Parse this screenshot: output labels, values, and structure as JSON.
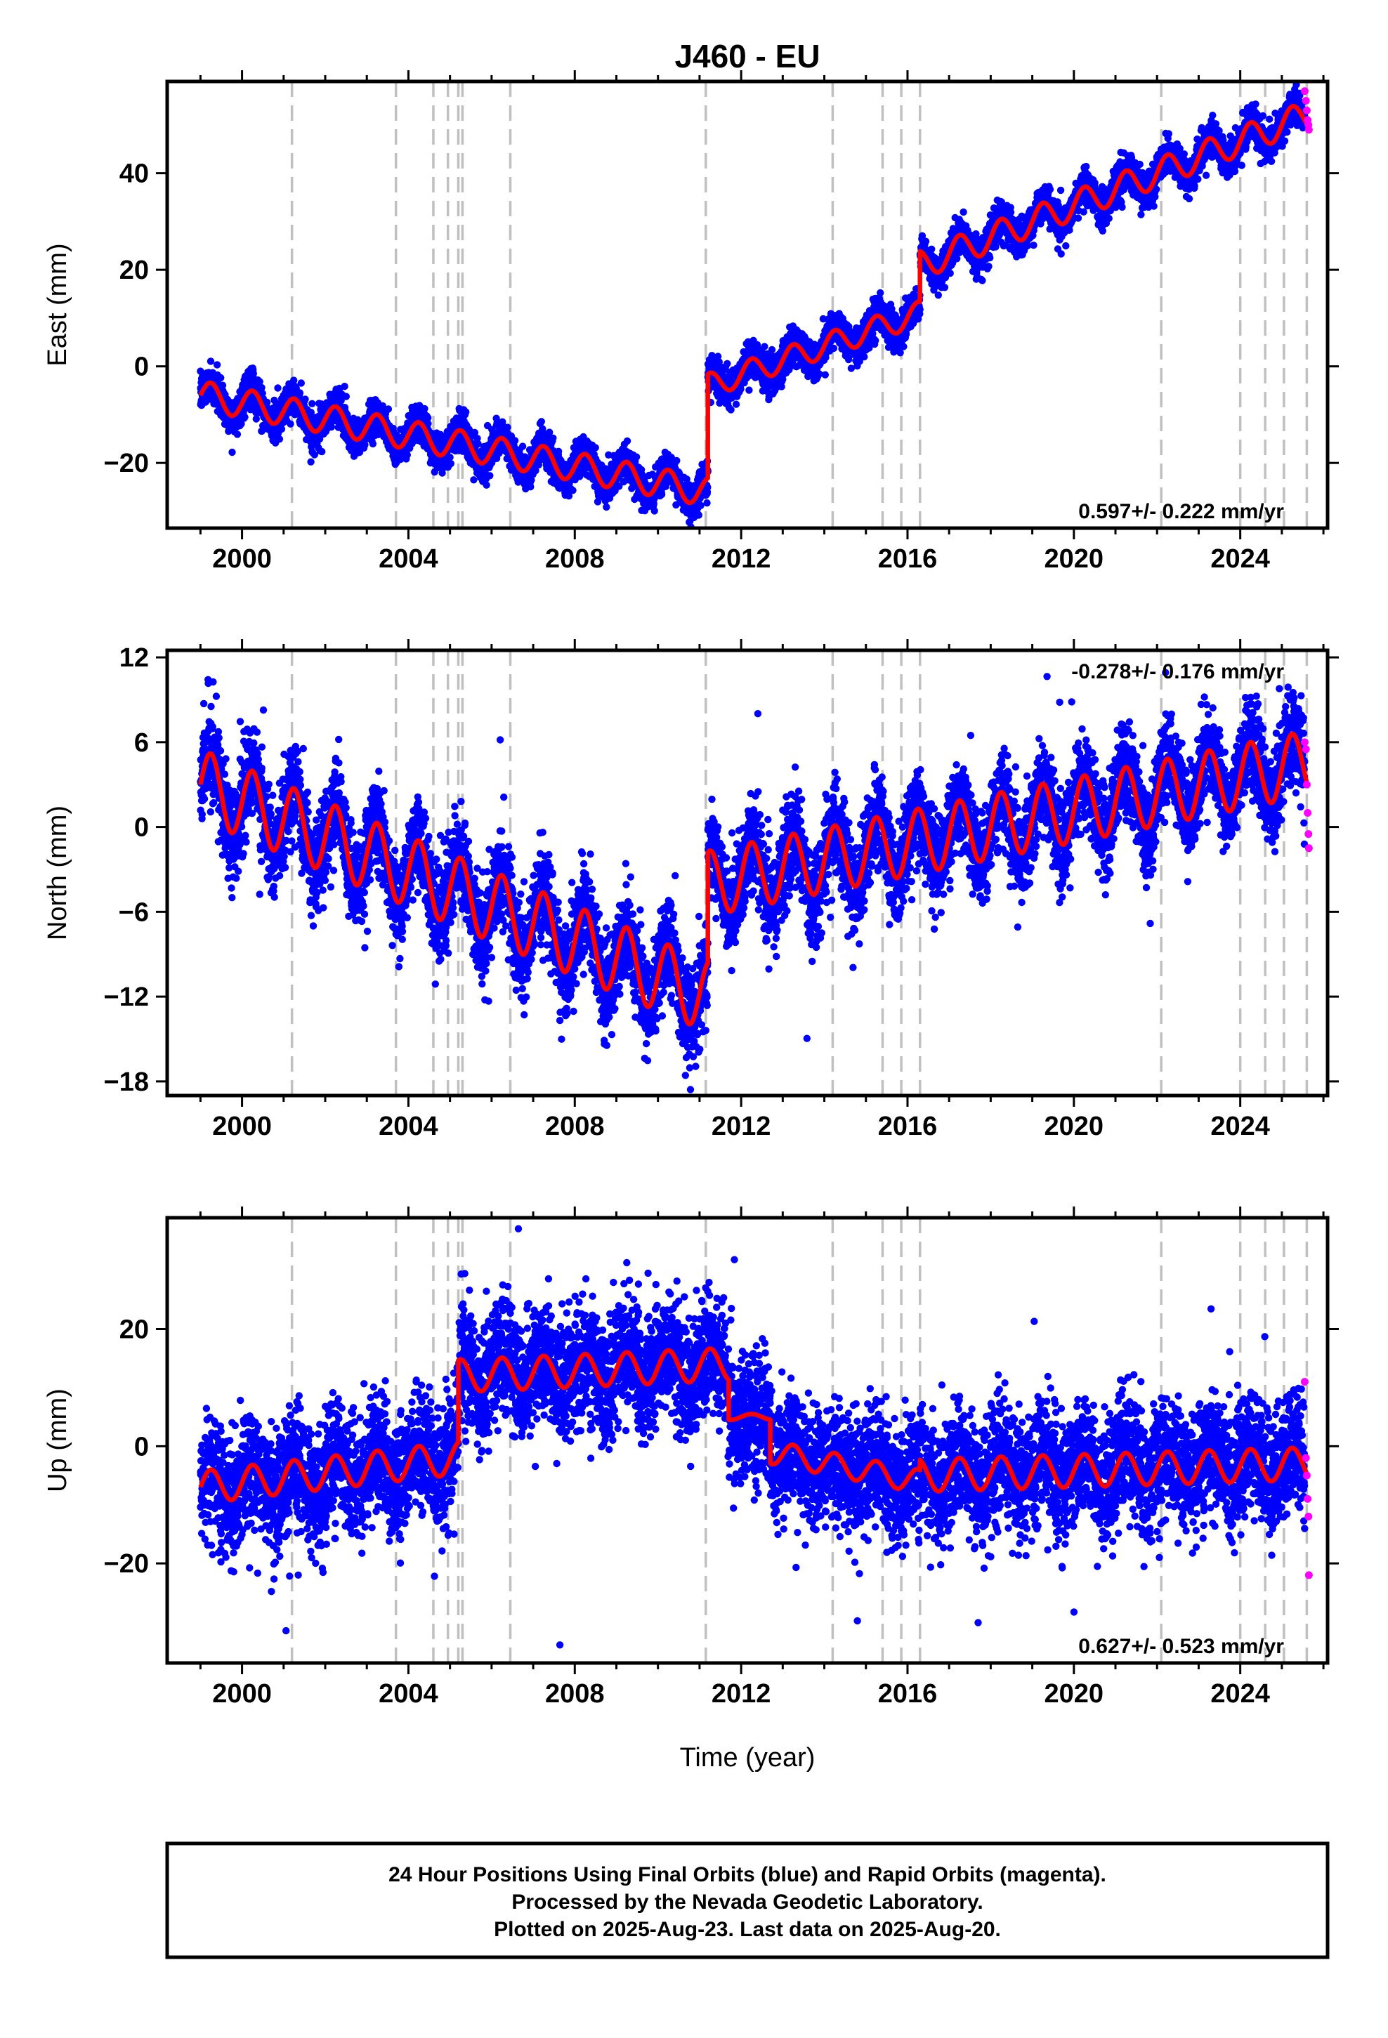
{
  "title": "J460 - EU",
  "xlabel": "Time (year)",
  "footer": {
    "line1": "24 Hour Positions Using Final Orbits (blue) and Rapid Orbits (magenta).",
    "line2": "Processed by the Nevada Geodetic Laboratory.",
    "line3": "Plotted on 2025-Aug-23. Last data on 2025-Aug-20."
  },
  "colors": {
    "final_orbits": "#0000ff",
    "rapid_orbits": "#ff00ff",
    "model_fit": "#ff0000",
    "equipment_change": "#c0c0c0"
  },
  "chart_data": [
    {
      "type": "scatter",
      "component": "east",
      "ylabel": "East (mm)",
      "xlim": [
        1998.2,
        2026.1
      ],
      "ylim": [
        -33.5,
        59
      ],
      "xticks": [
        2000,
        2004,
        2008,
        2012,
        2016,
        2020,
        2024
      ],
      "yticks": [
        -20,
        0,
        20,
        40
      ],
      "rate_label": "0.597+/- 0.222 mm/yr",
      "rate_position": "bottom-right",
      "noise_sd": 1.8,
      "series": [
        {
          "name": "model",
          "segments": [
            {
              "x0": 1999.0,
              "x1": 2011.2,
              "y0": -6,
              "y1": -26,
              "amplitude": 3.0
            },
            {
              "x0": 2011.2,
              "x1": 2016.3,
              "y0": -4,
              "y1": 11,
              "amplitude": 2.5
            },
            {
              "x0": 2016.3,
              "x1": 2025.6,
              "y0": 21,
              "y1": 52,
              "amplitude": 3.0
            }
          ]
        }
      ],
      "rapid_points": [
        {
          "x": 2025.55,
          "y": 57
        },
        {
          "x": 2025.58,
          "y": 55
        },
        {
          "x": 2025.6,
          "y": 53
        },
        {
          "x": 2025.62,
          "y": 51
        },
        {
          "x": 2025.64,
          "y": 50
        },
        {
          "x": 2025.65,
          "y": 49
        }
      ]
    },
    {
      "type": "scatter",
      "component": "north",
      "ylabel": "North (mm)",
      "xlim": [
        1998.2,
        2026.1
      ],
      "ylim": [
        -19,
        12.5
      ],
      "xticks": [
        2000,
        2004,
        2008,
        2012,
        2016,
        2020,
        2024
      ],
      "yticks": [
        -18,
        -12,
        -6,
        0,
        6,
        12
      ],
      "rate_label": "-0.278+/- 0.176 mm/yr",
      "rate_position": "top-right",
      "noise_sd": 1.6,
      "series": [
        {
          "name": "model",
          "segments": [
            {
              "x0": 1999.0,
              "x1": 2011.2,
              "y0": 3,
              "y1": -12,
              "amplitude": 2.5
            },
            {
              "x0": 2011.2,
              "x1": 2025.6,
              "y0": -4,
              "y1": 4.5,
              "amplitude": 2.3
            }
          ]
        }
      ],
      "rapid_points": [
        {
          "x": 2025.55,
          "y": 6
        },
        {
          "x": 2025.58,
          "y": 5.5
        },
        {
          "x": 2025.6,
          "y": 3
        },
        {
          "x": 2025.62,
          "y": 1
        },
        {
          "x": 2025.64,
          "y": -0.5
        },
        {
          "x": 2025.65,
          "y": -1.5
        }
      ]
    },
    {
      "type": "scatter",
      "component": "up",
      "ylabel": "Up (mm)",
      "xlim": [
        1998.2,
        2026.1
      ],
      "ylim": [
        -37,
        39
      ],
      "xticks": [
        2000,
        2004,
        2008,
        2012,
        2016,
        2020,
        2024
      ],
      "yticks": [
        -20,
        0,
        20
      ],
      "rate_label": "0.627+/- 0.523 mm/yr",
      "rate_position": "bottom-right",
      "noise_sd": 5.0,
      "series": [
        {
          "name": "model",
          "segments": [
            {
              "x0": 1999.0,
              "x1": 2005.2,
              "y0": -7,
              "y1": -2,
              "amplitude": 2.8
            },
            {
              "x0": 2005.2,
              "x1": 2011.7,
              "y0": 12,
              "y1": 14,
              "amplitude": 2.8
            },
            {
              "x0": 2011.7,
              "x1": 2012.7,
              "y0": 5,
              "y1": 5,
              "amplitude": 0.5
            },
            {
              "x0": 2012.7,
              "x1": 2016.3,
              "y0": -1,
              "y1": -6,
              "amplitude": 2.0
            },
            {
              "x0": 2016.3,
              "x1": 2025.6,
              "y0": -5,
              "y1": -3,
              "amplitude": 2.8
            }
          ]
        }
      ],
      "rapid_points": [
        {
          "x": 2025.55,
          "y": 11
        },
        {
          "x": 2025.58,
          "y": -2
        },
        {
          "x": 2025.6,
          "y": -5
        },
        {
          "x": 2025.62,
          "y": -9
        },
        {
          "x": 2025.64,
          "y": -12
        },
        {
          "x": 2025.65,
          "y": -22
        }
      ]
    }
  ],
  "equipment_changes": [
    2001.2,
    2003.7,
    2004.6,
    2004.95,
    2005.2,
    2005.3,
    2006.45,
    2011.15,
    2014.2,
    2015.4,
    2015.85,
    2016.3,
    2022.1,
    2024.0,
    2024.6,
    2025.05,
    2025.6
  ]
}
